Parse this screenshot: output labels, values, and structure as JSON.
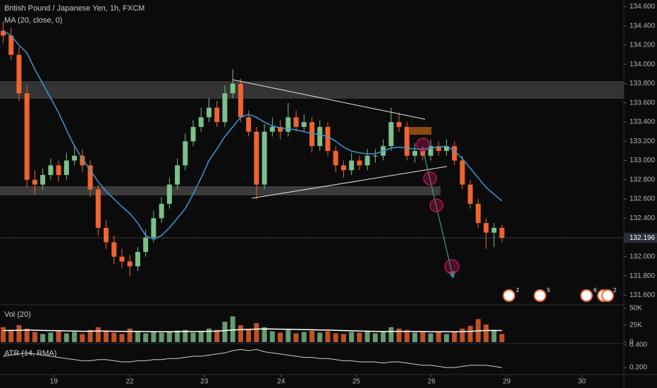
{
  "chart_data": [
    {
      "type": "candlestick",
      "title": "British Pound / Japanese Yen, 1h, FXCM",
      "xlim": [
        -0.4,
        78.4
      ],
      "xticks": [
        {
          "value": 6.4,
          "label": "19"
        },
        {
          "value": 16.0,
          "label": "22"
        },
        {
          "value": 25.4,
          "label": "23"
        },
        {
          "value": 35.1,
          "label": "24"
        },
        {
          "value": 44.6,
          "label": "25"
        },
        {
          "value": 54.1,
          "label": "26"
        },
        {
          "value": 63.6,
          "label": "29"
        },
        {
          "value": 73.1,
          "label": "30"
        }
      ],
      "ylim": [
        131.5,
        134.67
      ],
      "yticks": [
        {
          "value": 134.6,
          "label": "134.600"
        },
        {
          "value": 134.4,
          "label": "134.400"
        },
        {
          "value": 134.2,
          "label": "134.200"
        },
        {
          "value": 134.0,
          "label": "134.000"
        },
        {
          "value": 133.8,
          "label": "133.800"
        },
        {
          "value": 133.6,
          "label": "133.600"
        },
        {
          "value": 133.4,
          "label": "133.400"
        },
        {
          "value": 133.2,
          "label": "133.200"
        },
        {
          "value": 133.0,
          "label": "133.000"
        },
        {
          "value": 132.8,
          "label": "132.800"
        },
        {
          "value": 132.6,
          "label": "132.600"
        },
        {
          "value": 132.4,
          "label": "132.400"
        },
        {
          "value": 132.2,
          "label": "132.200"
        },
        {
          "value": 132.0,
          "label": "132.000"
        },
        {
          "value": 131.8,
          "label": "131.800"
        },
        {
          "value": 131.6,
          "label": "131.600"
        }
      ],
      "up_color": "#7cc08a",
      "down_color": "#f0642d",
      "open": [
        134.35,
        134.3,
        134.1,
        133.7,
        132.8,
        132.75,
        132.85,
        132.95,
        132.85,
        133.0,
        133.05,
        132.95,
        132.7,
        132.3,
        132.15,
        132.0,
        131.95,
        131.9,
        132.05,
        132.2,
        132.4,
        132.55,
        132.75,
        132.95,
        133.2,
        133.35,
        133.45,
        133.55,
        133.4,
        133.7,
        133.8,
        133.45,
        133.3,
        132.75,
        133.3,
        133.35,
        133.3,
        133.45,
        133.35,
        133.4,
        133.15,
        133.35,
        133.1,
        132.95,
        132.9,
        133.0,
        132.95,
        133.05,
        133.05,
        133.15,
        133.4,
        133.35,
        133.05,
        133.1,
        133.05,
        133.15,
        133.1,
        133.15,
        133.0,
        132.75,
        132.55,
        132.35,
        132.25,
        132.3
      ],
      "high": [
        134.45,
        134.38,
        134.18,
        133.78,
        132.9,
        132.92,
        133.02,
        133.0,
        133.08,
        133.15,
        133.12,
        133.0,
        132.75,
        132.38,
        132.22,
        132.08,
        132.02,
        132.1,
        132.28,
        132.48,
        132.62,
        132.82,
        133.02,
        133.28,
        133.42,
        133.55,
        133.65,
        133.62,
        133.78,
        133.95,
        133.85,
        133.52,
        133.35,
        133.38,
        133.45,
        133.42,
        133.6,
        133.52,
        133.48,
        133.45,
        133.42,
        133.4,
        133.15,
        133.0,
        133.08,
        133.05,
        133.12,
        133.12,
        133.22,
        133.55,
        133.5,
        133.4,
        133.18,
        133.15,
        133.22,
        133.2,
        133.22,
        133.2,
        133.05,
        132.8,
        132.6,
        132.4,
        132.35,
        132.33
      ],
      "low": [
        134.22,
        134.05,
        133.62,
        132.72,
        132.65,
        132.7,
        132.8,
        132.78,
        132.8,
        132.95,
        132.88,
        132.62,
        132.22,
        132.08,
        131.92,
        131.88,
        131.8,
        131.85,
        132.0,
        132.15,
        132.35,
        132.5,
        132.7,
        132.9,
        133.15,
        133.3,
        133.4,
        133.35,
        133.35,
        133.65,
        133.4,
        133.25,
        132.6,
        132.7,
        133.25,
        133.22,
        133.25,
        133.3,
        133.3,
        133.08,
        133.1,
        133.05,
        132.88,
        132.82,
        132.85,
        132.9,
        132.9,
        132.98,
        133.0,
        133.1,
        133.3,
        133.0,
        132.98,
        133.0,
        133.0,
        133.05,
        133.05,
        132.95,
        132.7,
        132.5,
        132.3,
        132.08,
        132.1,
        132.15
      ],
      "close": [
        134.3,
        134.1,
        133.7,
        132.8,
        132.75,
        132.85,
        132.95,
        132.85,
        133.0,
        133.05,
        132.95,
        132.7,
        132.3,
        132.15,
        132.0,
        131.95,
        131.9,
        132.05,
        132.2,
        132.4,
        132.55,
        132.75,
        132.95,
        133.2,
        133.35,
        133.45,
        133.55,
        133.4,
        133.7,
        133.8,
        133.45,
        133.3,
        132.75,
        133.3,
        133.35,
        133.3,
        133.45,
        133.35,
        133.4,
        133.15,
        133.35,
        133.1,
        132.95,
        132.9,
        133.0,
        132.95,
        133.05,
        133.05,
        133.15,
        133.4,
        133.35,
        133.05,
        133.1,
        133.05,
        133.15,
        133.1,
        133.15,
        133.0,
        132.75,
        132.55,
        132.35,
        132.25,
        132.3,
        132.196
      ],
      "series": [
        {
          "name": "MA (20, close, 0)",
          "color": "#3a9ad9",
          "values": [
            134.35,
            134.3,
            134.2,
            134.12,
            133.95,
            133.8,
            133.65,
            133.5,
            133.32,
            133.15,
            133.02,
            132.9,
            132.78,
            132.68,
            132.6,
            132.52,
            132.45,
            132.35,
            132.22,
            132.18,
            132.22,
            132.3,
            132.4,
            132.5,
            132.65,
            132.82,
            133.0,
            133.12,
            133.25,
            133.35,
            133.45,
            133.48,
            133.45,
            133.4,
            133.36,
            133.34,
            133.33,
            133.32,
            133.3,
            133.28,
            133.27,
            133.25,
            133.2,
            133.14,
            133.1,
            133.08,
            133.07,
            133.07,
            133.1,
            133.13,
            133.14,
            133.13,
            133.12,
            133.12,
            133.13,
            133.14,
            133.15,
            133.1,
            133.02,
            132.92,
            132.82,
            132.72,
            132.65,
            132.58
          ]
        }
      ],
      "last_value": 132.196,
      "events": [
        "2",
        "5",
        "6",
        "2"
      ]
    },
    {
      "type": "bar",
      "title": "Vol (20)",
      "ylim": [
        0,
        53000
      ],
      "yticks": [
        {
          "value": 50000,
          "label": "50K"
        },
        {
          "value": 25000,
          "label": "25K"
        },
        0
      ],
      "values": [
        22000,
        18000,
        25000,
        20000,
        15000,
        12000,
        14000,
        16000,
        13000,
        15000,
        12000,
        18000,
        22000,
        16000,
        14000,
        12000,
        20000,
        15000,
        13000,
        16000,
        14000,
        15000,
        17000,
        18000,
        14000,
        16000,
        20000,
        18000,
        30000,
        38000,
        25000,
        20000,
        28000,
        22000,
        16000,
        14000,
        18000,
        13000,
        15000,
        17000,
        14000,
        16000,
        13000,
        12000,
        15000,
        14000,
        16000,
        13000,
        15000,
        22000,
        20000,
        18000,
        14000,
        15000,
        13000,
        16000,
        12000,
        15000,
        20000,
        24000,
        34000,
        26000,
        18000,
        12000
      ],
      "ma": {
        "color": "#ffffff",
        "values": [
          17000,
          17200,
          17500,
          17800,
          17600,
          17300,
          17000,
          16800,
          16500,
          16300,
          16000,
          16100,
          16300,
          16200,
          16000,
          15800,
          15900,
          15800,
          15600,
          15500,
          15400,
          15400,
          15500,
          15700,
          15600,
          15700,
          16000,
          16200,
          17000,
          18000,
          18500,
          18700,
          19200,
          19400,
          19300,
          19100,
          19000,
          18700,
          18500,
          18300,
          18000,
          17800,
          17400,
          17000,
          16700,
          16400,
          16100,
          15800,
          15600,
          15700,
          15800,
          15900,
          15700,
          15600,
          15400,
          15400,
          15300,
          15300,
          15500,
          15900,
          16600,
          17100,
          17200,
          17000
        ]
      }
    },
    {
      "type": "line",
      "title": "ATR (14, RMA)",
      "ylim": [
        0.15,
        0.4
      ],
      "yticks": [
        {
          "value": 0.4,
          "label": "0.400"
        },
        {
          "value": 0.2,
          "label": "0.200"
        }
      ],
      "color": "#cfcfcf",
      "values": [
        0.3,
        0.31,
        0.32,
        0.33,
        0.32,
        0.31,
        0.3,
        0.29,
        0.28,
        0.27,
        0.26,
        0.26,
        0.27,
        0.27,
        0.26,
        0.25,
        0.25,
        0.26,
        0.26,
        0.27,
        0.27,
        0.28,
        0.28,
        0.29,
        0.3,
        0.3,
        0.31,
        0.32,
        0.33,
        0.35,
        0.36,
        0.35,
        0.36,
        0.34,
        0.33,
        0.32,
        0.31,
        0.3,
        0.29,
        0.29,
        0.28,
        0.28,
        0.27,
        0.26,
        0.26,
        0.25,
        0.25,
        0.25,
        0.24,
        0.25,
        0.25,
        0.24,
        0.23,
        0.22,
        0.22,
        0.21,
        0.2,
        0.2,
        0.21,
        0.22,
        0.22,
        0.22,
        0.21,
        0.2
      ]
    }
  ]
}
